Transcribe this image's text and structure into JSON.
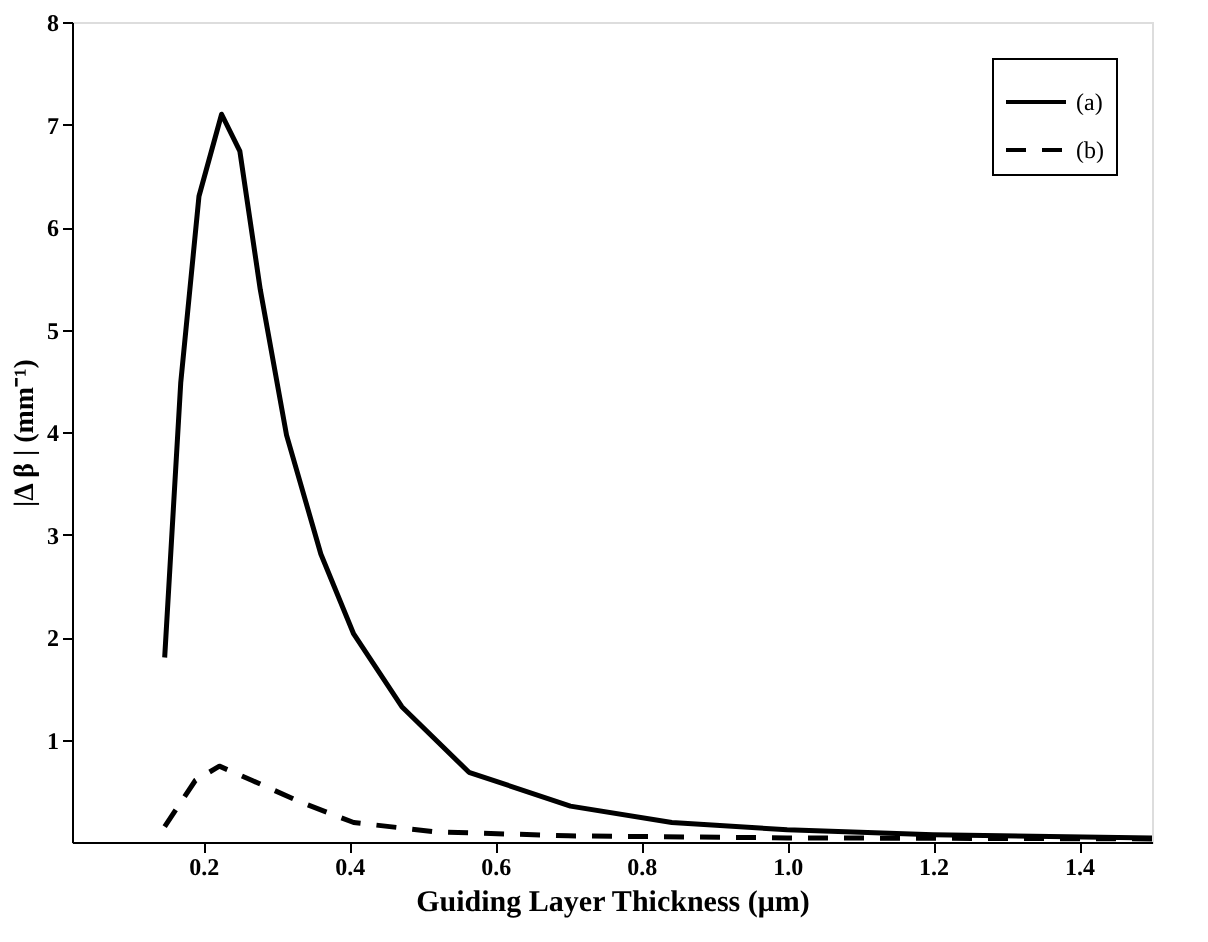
{
  "chart_data": {
    "type": "line",
    "xlabel": "Guiding Layer Thickness  (μm)",
    "ylabel": "|Δ β |  (mm⁻¹)",
    "xlim": [
      0.02,
      1.5
    ],
    "xticks": [
      0.2,
      0.4,
      0.6,
      0.8,
      {
        "value": 1,
        "label": "1.0"
      },
      1.2,
      1.4
    ],
    "ylim": [
      0,
      8
    ],
    "yticks": [
      1,
      2,
      3,
      4,
      5,
      6,
      7,
      8
    ],
    "legend": "top right",
    "grid": false,
    "marker": "none",
    "series": [
      {
        "name": "(a)",
        "color": "#000000",
        "line_style": "solid",
        "x": [
          0.147,
          0.169,
          0.194,
          0.225,
          0.25,
          0.278,
          0.314,
          0.361,
          0.406,
          0.472,
          0.564,
          0.703,
          0.842,
          1.0,
          1.2,
          1.5
        ],
        "values": [
          1.8,
          4.48,
          6.3,
          7.1,
          6.74,
          5.39,
          3.97,
          2.81,
          2.03,
          1.32,
          0.68,
          0.35,
          0.19,
          0.12,
          0.07,
          0.04
        ]
      },
      {
        "name": "(b)",
        "color": "#000000",
        "line_style": "dashed",
        "x": [
          0.147,
          0.189,
          0.222,
          0.267,
          0.333,
          0.406,
          0.517,
          0.7,
          1.0,
          1.5
        ],
        "values": [
          0.15,
          0.6,
          0.74,
          0.6,
          0.39,
          0.19,
          0.1,
          0.06,
          0.04,
          0.03
        ]
      }
    ]
  }
}
